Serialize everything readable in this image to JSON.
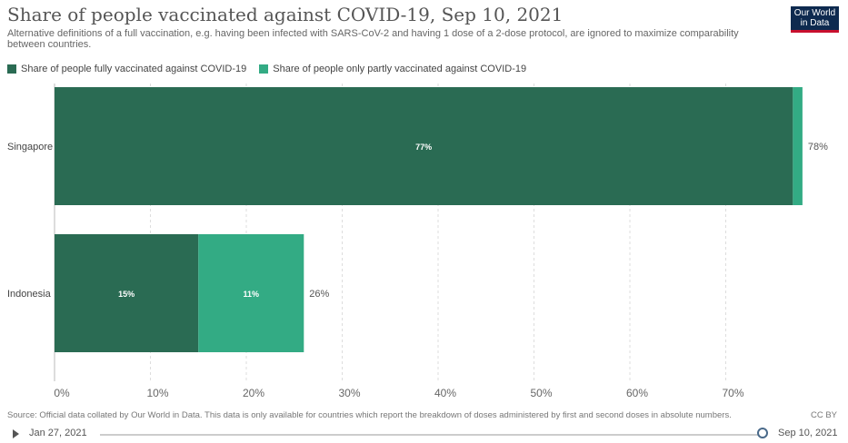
{
  "header": {
    "title": "Share of people vaccinated against COVID-19, Sep 10, 2021",
    "subtitle": "Alternative definitions of a full vaccination, e.g. having been infected with SARS-CoV-2 and having 1 dose of a 2-dose protocol, are ignored to maximize comparability between countries.",
    "logo_line1": "Our World",
    "logo_line2": "in Data"
  },
  "colors": {
    "fully": "#2a6b53",
    "partly": "#33ab84",
    "grid": "#dddddd",
    "label_inside": "#ffffff",
    "label_outside": "#555555"
  },
  "chart_data": {
    "type": "bar",
    "orientation": "horizontal",
    "stacked": true,
    "categories": [
      "Singapore",
      "Indonesia"
    ],
    "series": [
      {
        "name": "Share of people fully vaccinated against COVID-19",
        "values": [
          77,
          15
        ],
        "labels": [
          "77%",
          "15%"
        ]
      },
      {
        "name": "Share of people only partly vaccinated against COVID-19",
        "values": [
          1,
          11
        ],
        "labels": [
          "",
          "11%"
        ]
      }
    ],
    "totals": [
      78,
      26
    ],
    "total_labels": [
      "78%",
      "26%"
    ],
    "xlim": [
      0,
      80
    ],
    "xticks": [
      0,
      10,
      20,
      30,
      40,
      50,
      60,
      70
    ],
    "xtick_labels": [
      "0%",
      "10%",
      "20%",
      "30%",
      "40%",
      "50%",
      "60%",
      "70%"
    ],
    "grid": true,
    "legend_position": "top-left"
  },
  "footer": {
    "source": "Source: Official data collated by Our World in Data. This data is only available for countries which report the breakdown of doses administered by first and second doses in absolute numbers.",
    "license": "CC BY"
  },
  "timeline": {
    "start_label": "Jan 27, 2021",
    "end_label": "Sep 10, 2021"
  }
}
